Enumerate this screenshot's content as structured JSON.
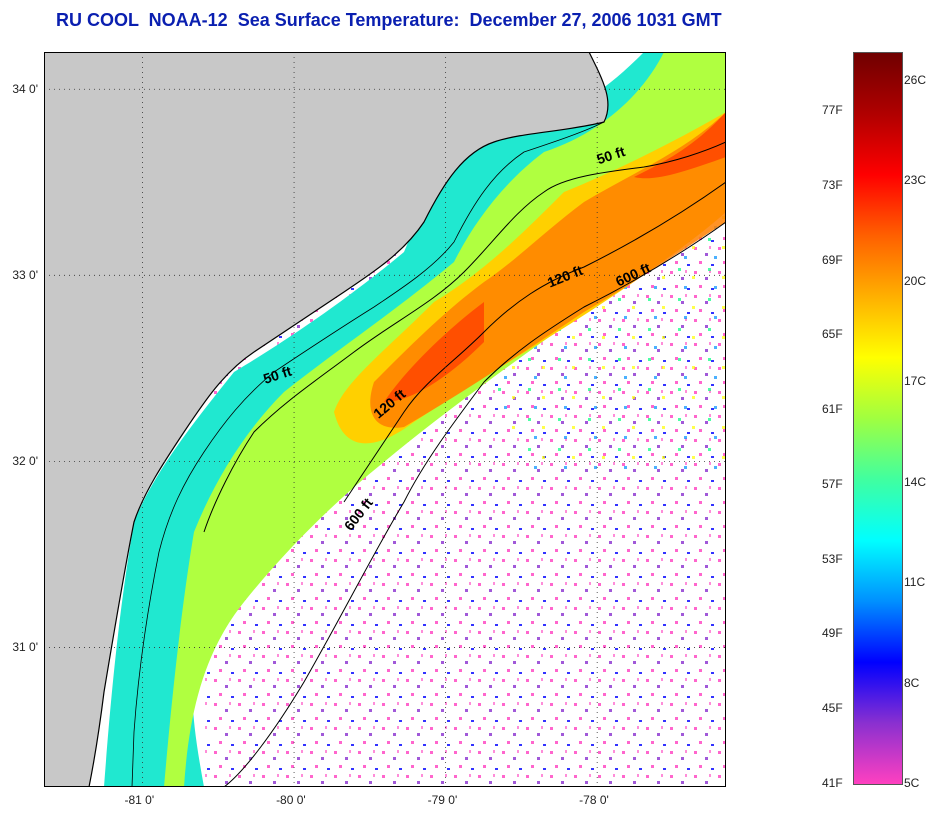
{
  "title": "RU COOL  NOAA-12  Sea Surface Temperature:  December 27, 2006 1031 GMT",
  "colors": {
    "land": "#c8c8c8",
    "ocean_empty": "#ffffff",
    "title": "#0a1fb0",
    "coastline": "#000000",
    "ramp": [
      "#ff40c0",
      "#8a30d0",
      "#0000ff",
      "#0090ff",
      "#00ffff",
      "#40ffa0",
      "#a0ff40",
      "#ffff00",
      "#ffb000",
      "#ff6000",
      "#ff0000",
      "#b00000",
      "#700000"
    ]
  },
  "map": {
    "lon_ticks": [
      {
        "label": "-81 0'",
        "value": -81
      },
      {
        "label": "-80 0'",
        "value": -80
      },
      {
        "label": "-79 0'",
        "value": -79
      },
      {
        "label": "-78 0'",
        "value": -78
      }
    ],
    "lat_ticks": [
      {
        "label": "34 0'",
        "value": 34
      },
      {
        "label": "33 0'",
        "value": 33
      },
      {
        "label": "32 0'",
        "value": 32
      },
      {
        "label": "31 0'",
        "value": 31
      }
    ],
    "contour_labels": [
      {
        "text": "50 ft",
        "lon": -77.9,
        "lat": 33.62,
        "angle": -18
      },
      {
        "text": "50 ft",
        "lon": -80.1,
        "lat": 32.44,
        "angle": -18
      },
      {
        "text": "120 ft",
        "lon": -78.2,
        "lat": 32.97,
        "angle": -22
      },
      {
        "text": "120 ft",
        "lon": -79.35,
        "lat": 32.29,
        "angle": -40
      },
      {
        "text": "600 ft",
        "lon": -77.75,
        "lat": 32.98,
        "angle": -25
      },
      {
        "text": "600 ft",
        "lon": -79.55,
        "lat": 31.7,
        "angle": -52
      }
    ]
  },
  "colorbar": {
    "celsius_labels": [
      "26C",
      "23C",
      "20C",
      "17C",
      "14C",
      "11C",
      "8C",
      "5C"
    ],
    "fahrenheit_labels": [
      "77F",
      "73F",
      "69F",
      "65F",
      "61F",
      "57F",
      "53F",
      "49F",
      "45F",
      "41F"
    ]
  }
}
